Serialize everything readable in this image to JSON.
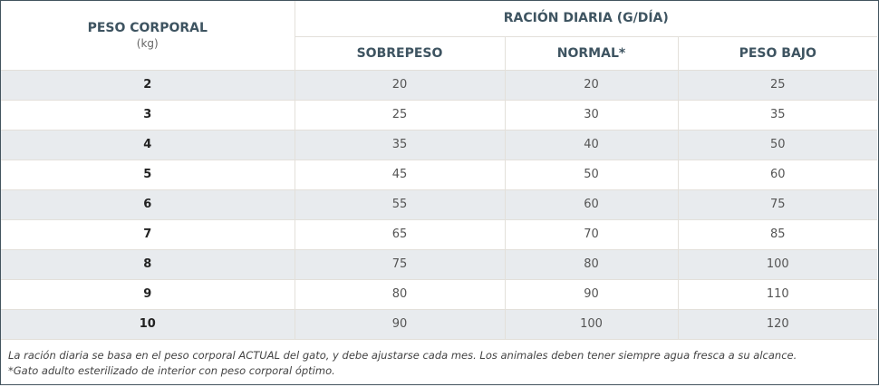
{
  "header": {
    "weight_title": "PESO CORPORAL",
    "weight_unit": "(kg)",
    "ration_title": "RACIÓN DIARIA (G/DÍA)",
    "columns": [
      "SOBREPESO",
      "NORMAL*",
      "PESO BAJO"
    ]
  },
  "rows": [
    {
      "weight": "2",
      "values": [
        "20",
        "20",
        "25"
      ]
    },
    {
      "weight": "3",
      "values": [
        "25",
        "30",
        "35"
      ]
    },
    {
      "weight": "4",
      "values": [
        "35",
        "40",
        "50"
      ]
    },
    {
      "weight": "5",
      "values": [
        "45",
        "50",
        "60"
      ]
    },
    {
      "weight": "6",
      "values": [
        "55",
        "60",
        "75"
      ]
    },
    {
      "weight": "7",
      "values": [
        "65",
        "70",
        "85"
      ]
    },
    {
      "weight": "8",
      "values": [
        "75",
        "80",
        "100"
      ]
    },
    {
      "weight": "9",
      "values": [
        "80",
        "90",
        "110"
      ]
    },
    {
      "weight": "10",
      "values": [
        "90",
        "100",
        "120"
      ]
    }
  ],
  "footer": {
    "note1": "La ración diaria se basa en el peso corporal ACTUAL del gato, y debe ajustarse cada mes. Los animales deben tener siempre agua fresca a su alcance.",
    "note2": "*Gato adulto esterilizado de interior con peso corporal óptimo."
  }
}
